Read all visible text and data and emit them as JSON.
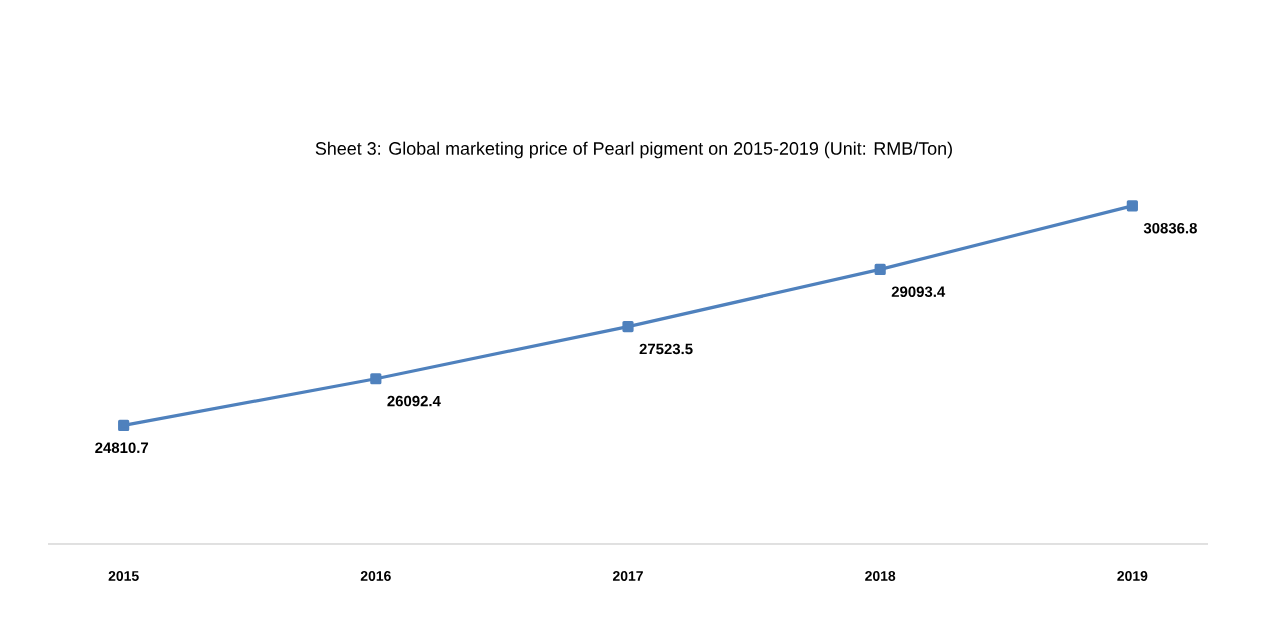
{
  "chart_data": {
    "type": "line",
    "title": "Sheet 3: Global marketing price of Pearl pigment on 2015-2019 (Unit: RMB/Ton)",
    "categories": [
      "2015",
      "2016",
      "2017",
      "2018",
      "2019"
    ],
    "values": [
      24810.7,
      26092.4,
      27523.5,
      29093.4,
      30836.8
    ],
    "value_labels": [
      "24810.7",
      "26092.4",
      "27523.5",
      "29093.4",
      "30836.8"
    ],
    "color": "#4f81bd",
    "marker": "square",
    "line_style": "solid"
  }
}
